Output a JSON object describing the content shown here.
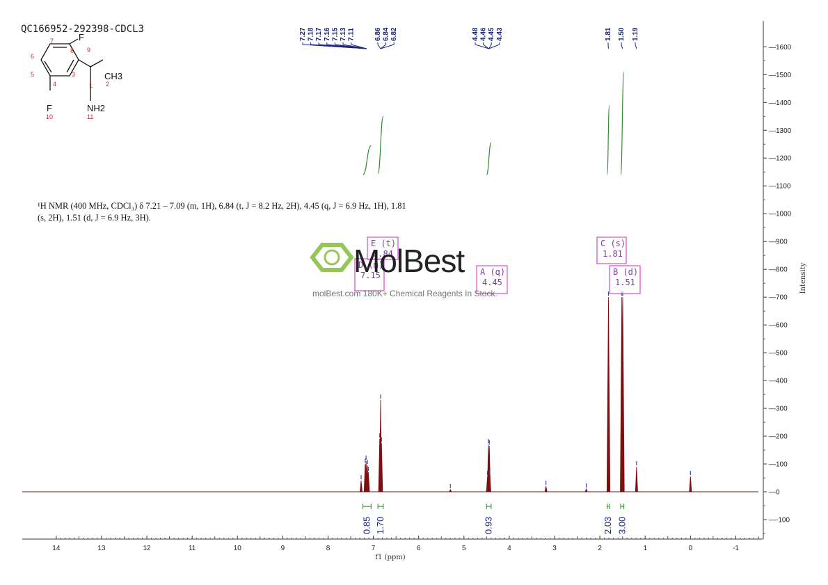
{
  "sample_id": "QC166952-292398-CDCL3",
  "nmr_summary": {
    "line1": "¹H NMR (400 MHz, CDCl₃) δ 7.21 – 7.09 (m, 1H), 6.84 (t, J = 8.2 Hz, 2H), 4.45 (q, J = 6.9 Hz, 1H), 1.81",
    "line2": "(s, 2H), 1.51 (d, J = 6.9 Hz, 3H)."
  },
  "watermark": {
    "brand": "MolBest",
    "tagline": "molBest.com 180K+ Chemical Reagents In Stock."
  },
  "molecule": {
    "atoms": [
      "F",
      "CH3",
      "NH2",
      "F"
    ],
    "atom_numbers": [
      "1",
      "2",
      "3",
      "4",
      "5",
      "6",
      "7",
      "8",
      "9",
      "10",
      "11"
    ]
  },
  "colors": {
    "spectrum": "#7b1010",
    "integral": "#2e8b2e",
    "peak_label": "#1a237e",
    "annotation_box": "#d24bd2"
  },
  "chart_data": {
    "type": "line",
    "xlabel": "f1 (ppm)",
    "ylabel": "Intensity",
    "x_ticks": [
      "14",
      "13",
      "12",
      "11",
      "10",
      "9",
      "8",
      "7",
      "6",
      "5",
      "4",
      "3",
      "2",
      "1",
      "0",
      "-1"
    ],
    "y_ticks": [
      "1600",
      "1500",
      "1400",
      "1300",
      "1200",
      "1100",
      "1000",
      "900",
      "800",
      "700",
      "600",
      "500",
      "400",
      "300",
      "200",
      "100",
      "0",
      "-100"
    ],
    "xlim": [
      14.75,
      -1.5
    ],
    "ylim": [
      -170,
      1690
    ],
    "peaks": [
      {
        "ppm": 7.27,
        "height": 40
      },
      {
        "ppm": 7.18,
        "height": 100
      },
      {
        "ppm": 7.16,
        "height": 110
      },
      {
        "ppm": 7.13,
        "height": 95
      },
      {
        "ppm": 7.11,
        "height": 70
      },
      {
        "ppm": 6.86,
        "height": 190
      },
      {
        "ppm": 6.84,
        "height": 330
      },
      {
        "ppm": 6.82,
        "height": 175
      },
      {
        "ppm": 5.3,
        "height": 8
      },
      {
        "ppm": 4.48,
        "height": 55
      },
      {
        "ppm": 4.46,
        "height": 170
      },
      {
        "ppm": 4.44,
        "height": 165
      },
      {
        "ppm": 4.43,
        "height": 55
      },
      {
        "ppm": 3.19,
        "height": 20
      },
      {
        "ppm": 2.3,
        "height": 10
      },
      {
        "ppm": 1.81,
        "height": 700
      },
      {
        "ppm": 1.515,
        "height": 700
      },
      {
        "ppm": 1.495,
        "height": 700
      },
      {
        "ppm": 1.19,
        "height": 90
      },
      {
        "ppm": 0.0,
        "height": 55
      }
    ],
    "peak_labels": {
      "group1": [
        "7.27",
        "7.18",
        "7.17",
        "7.16",
        "7.15",
        "7.13",
        "7.11"
      ],
      "group2": [
        "6.86",
        "6.84",
        "6.82"
      ],
      "group3": [
        "4.48",
        "4.46",
        "4.45",
        "4.43"
      ],
      "group4": [
        "1.81"
      ],
      "group5": [
        "1.50"
      ],
      "group6": [
        "1.19"
      ]
    },
    "integrals": [
      {
        "from": 7.23,
        "to": 7.05,
        "value": "0.85",
        "y_start": 1140,
        "y_end": 1245
      },
      {
        "from": 6.9,
        "to": 6.78,
        "value": "1.70",
        "y_start": 1145,
        "y_end": 1350
      },
      {
        "from": 4.5,
        "to": 4.4,
        "value": "0.93",
        "y_start": 1140,
        "y_end": 1255
      },
      {
        "from": 1.84,
        "to": 1.79,
        "value": "2.03",
        "y_start": 1140,
        "y_end": 1390
      },
      {
        "from": 1.54,
        "to": 1.47,
        "value": "3.00",
        "y_start": 1140,
        "y_end": 1510
      }
    ],
    "annotations": [
      {
        "id": "D",
        "mult": "(m)",
        "shift": "7.15",
        "letter_text": "D  (m)"
      },
      {
        "id": "E",
        "mult": "(t)",
        "shift": "6.84",
        "letter_text": "E  (t)"
      },
      {
        "id": "A",
        "mult": "(q)",
        "shift": "4.45",
        "letter_text": "A  (q)"
      },
      {
        "id": "C",
        "mult": "(s)",
        "shift": "1.81",
        "letter_text": "C  (s)"
      },
      {
        "id": "B",
        "mult": "(d)",
        "shift": "1.51",
        "letter_text": "B  (d)"
      }
    ]
  }
}
